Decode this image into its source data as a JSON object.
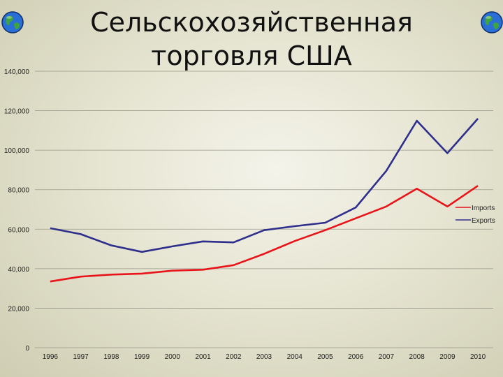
{
  "slide": {
    "title": "Сельскохозяйственная торговля США"
  },
  "icons": [
    "globe-icon",
    "globe-icon"
  ],
  "chart_data": {
    "type": "line",
    "title": "",
    "xlabel": "",
    "ylabel": "",
    "categories": [
      "1996",
      "1997",
      "1998",
      "1999",
      "2000",
      "2001",
      "2002",
      "2003",
      "2004",
      "2005",
      "2006",
      "2007",
      "2008",
      "2009",
      "2010"
    ],
    "y_ticks": [
      "0",
      "20,000",
      "40,000",
      "60,000",
      "80,000",
      "100,000",
      "120,000",
      "140,000"
    ],
    "ylim": [
      0,
      140000
    ],
    "grid": true,
    "legend_placement": "right",
    "series": [
      {
        "name": "Imports",
        "color": "#e8141a",
        "values": [
          33500,
          36000,
          37000,
          37500,
          39000,
          39500,
          41800,
          47500,
          54000,
          59500,
          65500,
          71500,
          80500,
          71500,
          82000
        ]
      },
      {
        "name": "Exports",
        "color": "#2e2e8c",
        "values": [
          60500,
          57500,
          51800,
          48500,
          51300,
          53800,
          53300,
          59500,
          61500,
          63300,
          71000,
          89500,
          114900,
          98500,
          116000
        ]
      }
    ]
  }
}
